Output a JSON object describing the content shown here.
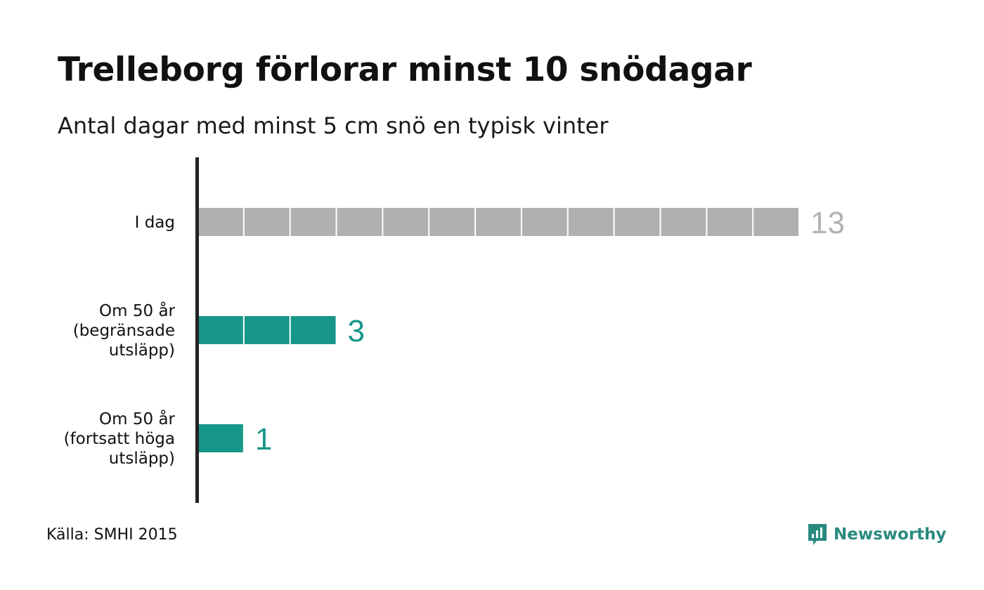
{
  "title": "Trelleborg förlorar minst 10 snödagar",
  "subtitle": "Antal dagar med minst 5 cm snö en typisk vinter",
  "source": "Källa: SMHI 2015",
  "brand": {
    "name": "Newsworthy",
    "icon": "newsworthy-logo-icon",
    "color": "#2a8a7e"
  },
  "colors": {
    "current": "#b0b0b0",
    "future": "#17978a",
    "axis": "#222222"
  },
  "chart_data": {
    "type": "bar",
    "orientation": "horizontal",
    "unit_blocks": true,
    "categories": [
      [
        "I dag"
      ],
      [
        "Om 50 år",
        "(begränsade",
        "utsläpp)"
      ],
      [
        "Om 50 år",
        "(fortsatt höga",
        "utsläpp)"
      ]
    ],
    "values": [
      13,
      3,
      1
    ],
    "value_labels": [
      "13",
      "3",
      "1"
    ],
    "xlim": [
      0,
      13
    ],
    "grid": false
  }
}
